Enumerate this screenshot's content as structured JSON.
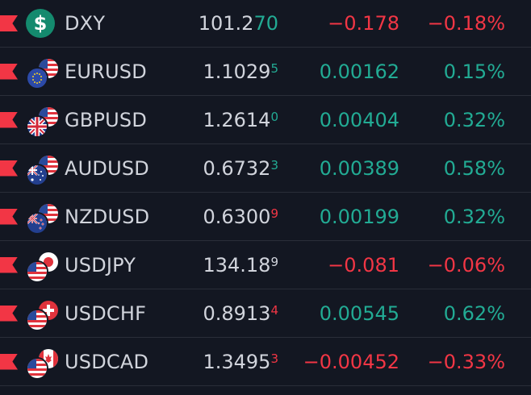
{
  "colors": {
    "up": "#22ab94",
    "down": "#f23645",
    "text": "#d1d4dc",
    "background": "#131722"
  },
  "rows": [
    {
      "symbol": "DXY",
      "icon": "dollar-icon",
      "last_main": "101.2",
      "last_tick": "70",
      "tick_small": false,
      "tick_dir": "up",
      "change": "−0.178",
      "change_pct": "−0.18%",
      "dir": "down"
    },
    {
      "symbol": "EURUSD",
      "icon": "eu-flag-icon",
      "last_main": "1.1029",
      "last_tick": "5",
      "tick_small": true,
      "tick_dir": "up",
      "change": "0.00162",
      "change_pct": "0.15%",
      "dir": "up"
    },
    {
      "symbol": "GBPUSD",
      "icon": "uk-flag-icon",
      "last_main": "1.2614",
      "last_tick": "0",
      "tick_small": true,
      "tick_dir": "up",
      "change": "0.00404",
      "change_pct": "0.32%",
      "dir": "up"
    },
    {
      "symbol": "AUDUSD",
      "icon": "au-flag-icon",
      "last_main": "0.6732",
      "last_tick": "3",
      "tick_small": true,
      "tick_dir": "up",
      "change": "0.00389",
      "change_pct": "0.58%",
      "dir": "up"
    },
    {
      "symbol": "NZDUSD",
      "icon": "nz-flag-icon",
      "last_main": "0.6300",
      "last_tick": "9",
      "tick_small": true,
      "tick_dir": "down",
      "change": "0.00199",
      "change_pct": "0.32%",
      "dir": "up"
    },
    {
      "symbol": "USDJPY",
      "icon": "jp-flag-icon",
      "last_main": "134.18",
      "last_tick": "9",
      "tick_small": true,
      "tick_dir": "neutral",
      "change": "−0.081",
      "change_pct": "−0.06%",
      "dir": "down"
    },
    {
      "symbol": "USDCHF",
      "icon": "ch-flag-icon",
      "last_main": "0.8913",
      "last_tick": "4",
      "tick_small": true,
      "tick_dir": "down",
      "change": "0.00545",
      "change_pct": "0.62%",
      "dir": "up"
    },
    {
      "symbol": "USDCAD",
      "icon": "ca-flag-icon",
      "last_main": "1.3495",
      "last_tick": "3",
      "tick_small": true,
      "tick_dir": "down",
      "change": "−0.00452",
      "change_pct": "−0.33%",
      "dir": "down"
    }
  ]
}
